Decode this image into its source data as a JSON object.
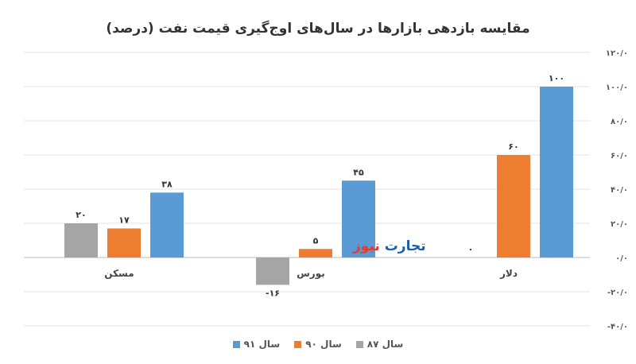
{
  "chart_data": {
    "type": "bar",
    "title": "مقایسه بازدهی بازارها در سال‌های اوج‌گیری قیمت نفت (درصد)",
    "categories": [
      "مسکن",
      "بورس",
      "دلار"
    ],
    "series": [
      {
        "name": "سال ۸۷",
        "color": "#a5a5a5",
        "values": [
          20,
          -16,
          0
        ],
        "labels": [
          "۲۰",
          "-۱۶",
          "۰"
        ]
      },
      {
        "name": "سال ۹۰",
        "color": "#ed7d31",
        "values": [
          17,
          5,
          60
        ],
        "labels": [
          "۱۷",
          "۵",
          "۶۰"
        ]
      },
      {
        "name": "سال ۹۱",
        "color": "#5b9bd5",
        "values": [
          38,
          45,
          100
        ],
        "labels": [
          "۳۸",
          "۴۵",
          "۱۰۰"
        ]
      }
    ],
    "ylim": [
      -40,
      120
    ],
    "yticks": [
      120,
      100,
      80,
      60,
      40,
      20,
      0,
      -20,
      -40
    ],
    "ytick_labels": [
      "۱۲۰/۰",
      "۱۰۰/۰",
      "۸۰/۰",
      "۶۰/۰",
      "۴۰/۰",
      "۲۰/۰",
      "۰/۰",
      "-۲۰/۰",
      "-۴۰/۰"
    ],
    "yaxis_position": "right",
    "grid": true,
    "legend_position": "bottom",
    "legend_order": [
      2,
      1,
      0
    ]
  },
  "watermark": {
    "text": "تجارت نیوز",
    "part1": "تجارت",
    "part2": "نیوز",
    "color1": "#1a5fa8",
    "color2": "#e63a2e"
  }
}
